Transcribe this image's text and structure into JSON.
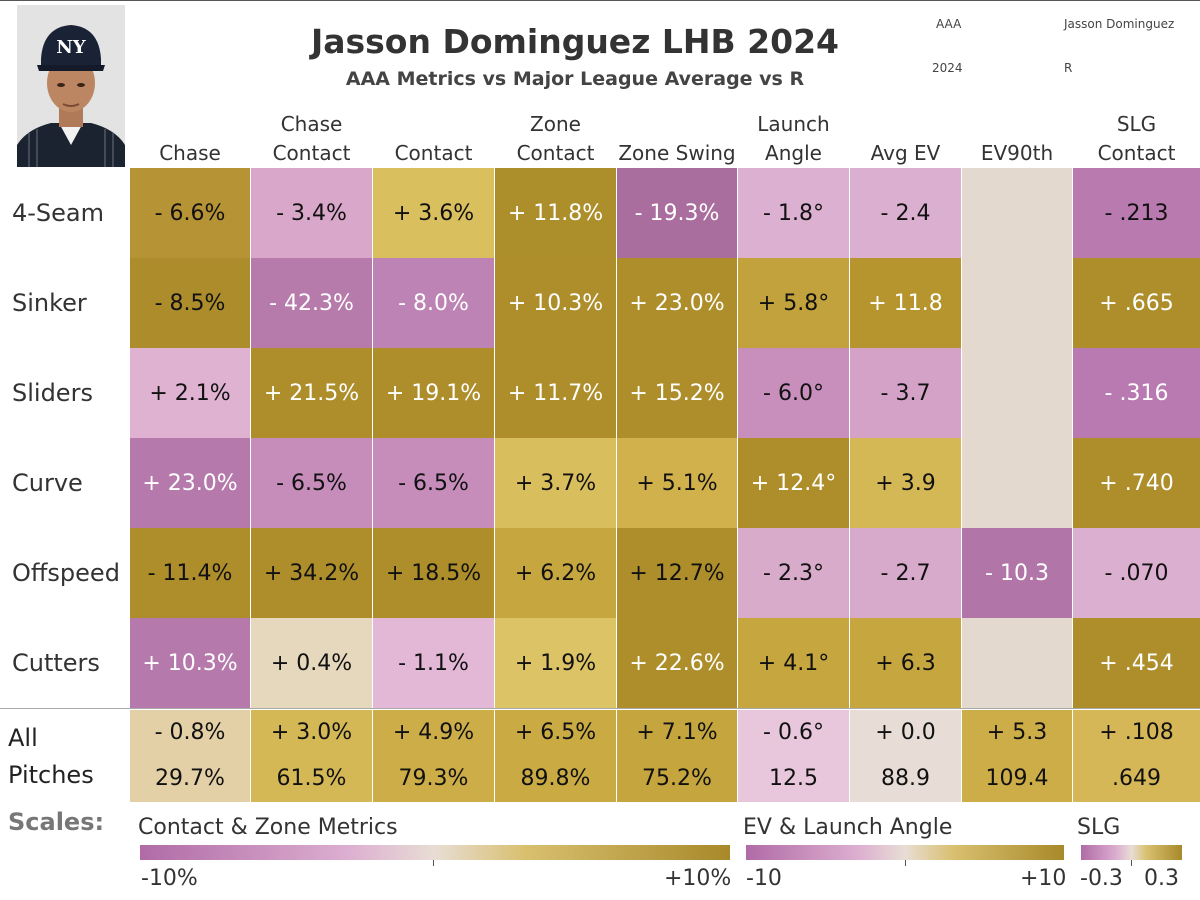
{
  "header": {
    "title": "Jasson Dominguez LHB 2024",
    "subtitle": "AAA Metrics vs Major League Average vs R",
    "meta": [
      "AAA",
      "Jasson Dominguez",
      "2024",
      "R"
    ]
  },
  "columns": [
    [
      "",
      "Chase"
    ],
    [
      "Chase",
      "Contact"
    ],
    [
      "",
      "Contact"
    ],
    [
      "Zone",
      "Contact"
    ],
    [
      "",
      "Zone Swing"
    ],
    [
      "Launch",
      "Angle"
    ],
    [
      "",
      "Avg EV"
    ],
    [
      "",
      "EV90th"
    ],
    [
      "SLG",
      "Contact"
    ]
  ],
  "rows": [
    {
      "label": "4-Seam",
      "cells": [
        "- 6.6%",
        "- 3.4%",
        "+ 3.6%",
        "+ 11.8%",
        "- 19.3%",
        "- 1.8°",
        "- 2.4",
        "",
        "- .213"
      ]
    },
    {
      "label": "Sinker",
      "cells": [
        "- 8.5%",
        "- 42.3%",
        "- 8.0%",
        "+ 10.3%",
        "+ 23.0%",
        "+ 5.8°",
        "+ 11.8",
        "",
        "+ .665"
      ]
    },
    {
      "label": "Sliders",
      "cells": [
        "+ 2.1%",
        "+ 21.5%",
        "+ 19.1%",
        "+ 11.7%",
        "+ 15.2%",
        "- 6.0°",
        "- 3.7",
        "",
        "- .316"
      ]
    },
    {
      "label": "Curve",
      "cells": [
        "+ 23.0%",
        "- 6.5%",
        "- 6.5%",
        "+ 3.7%",
        "+ 5.1%",
        "+ 12.4°",
        "+ 3.9",
        "",
        "+ .740"
      ]
    },
    {
      "label": "Offspeed",
      "cells": [
        "- 11.4%",
        "+ 34.2%",
        "+ 18.5%",
        "+ 6.2%",
        "+ 12.7%",
        "- 2.3°",
        "- 2.7",
        "- 10.3",
        "- .070"
      ]
    },
    {
      "label": "Cutters",
      "cells": [
        "+ 10.3%",
        "+ 0.4%",
        "- 1.1%",
        "+ 1.9%",
        "+ 22.6%",
        "+ 4.1°",
        "+ 6.3",
        "",
        "+ .454"
      ]
    }
  ],
  "all_pitches": {
    "label_lines": [
      "All",
      "Pitches"
    ],
    "deltas": [
      "- 0.8%",
      "+ 3.0%",
      "+ 4.9%",
      "+ 6.5%",
      "+ 7.1%",
      "- 0.6°",
      "+ 0.0",
      "+ 5.3",
      "+ .108"
    ],
    "values": [
      "29.7%",
      "61.5%",
      "79.3%",
      "89.8%",
      "75.2%",
      "12.5",
      "88.9",
      "109.4",
      ".649"
    ]
  },
  "scales": {
    "label": "Scales:",
    "legends": [
      {
        "title": "Contact & Zone Metrics",
        "min_label": "-10%",
        "max_label": "+10%"
      },
      {
        "title": "EV & Launch Angle",
        "min_label": "-10",
        "max_label": "+10"
      },
      {
        "title": "SLG",
        "min_label": "-0.3",
        "max_label": "0.3"
      }
    ]
  },
  "colors": {
    "cells": [
      [
        "#b69335",
        "#d9a7c9",
        "#d9bf5e",
        "#ac8e2a",
        "#a96d9e",
        "#dcb0d0",
        "#dbafcf",
        "#e3d9cf",
        "#b97ab0"
      ],
      [
        "#ad8d2b",
        "#b67aab",
        "#bc83b4",
        "#ad8e2b",
        "#ad8e2b",
        "#c1a23d",
        "#b6952e",
        "#e3d9cf",
        "#ad8e2b"
      ],
      [
        "#dfb2d2",
        "#ad8e2b",
        "#ad8e2b",
        "#ad8e2b",
        "#ad8e2b",
        "#c88fbc",
        "#d4a2c7",
        "#e3d9cf",
        "#b87ab0"
      ],
      [
        "#b57aab",
        "#c68dbb",
        "#c68dbb",
        "#d9be5d",
        "#d1b14c",
        "#ad8e2b",
        "#d5b856",
        "#e3d9cf",
        "#ad8e2b"
      ],
      [
        "#ad8e2b",
        "#ad8e2b",
        "#ad8e2b",
        "#c6a63e",
        "#ad8e2b",
        "#d9abcb",
        "#d7a9ca",
        "#b275a8",
        "#dbafcf"
      ],
      [
        "#b57aab",
        "#e6d8bc",
        "#e2b8d6",
        "#dbc366",
        "#ad8e2b",
        "#c6a63e",
        "#c6a63e",
        "#e3d9cf",
        "#ad8e2b"
      ]
    ],
    "all": [
      "#e4d0a6",
      "#d5b856",
      "#cdad47",
      "#c9aa43",
      "#c5a53e",
      "#e8c7dc",
      "#e7ddd6",
      "#cdad47",
      "#d6b758"
    ],
    "light_text_cells": [
      [
        0,
        3
      ],
      [
        0,
        4
      ],
      [
        1,
        1
      ],
      [
        1,
        2
      ],
      [
        1,
        3
      ],
      [
        1,
        4
      ],
      [
        1,
        6
      ],
      [
        1,
        8
      ],
      [
        2,
        1
      ],
      [
        2,
        2
      ],
      [
        2,
        3
      ],
      [
        2,
        4
      ],
      [
        2,
        8
      ],
      [
        3,
        0
      ],
      [
        3,
        5
      ],
      [
        3,
        8
      ],
      [
        4,
        7
      ],
      [
        5,
        0
      ],
      [
        5,
        4
      ],
      [
        5,
        8
      ]
    ],
    "scale_pink": "#b06ba6",
    "scale_mid": "#e8ddd5",
    "scale_gold": "#a8892a"
  },
  "chart_data": {
    "type": "heatmap",
    "title": "Jasson Dominguez LHB 2024",
    "subtitle": "AAA Metrics vs Major League Average vs R",
    "columns": [
      "Chase",
      "Chase Contact",
      "Contact",
      "Zone Contact",
      "Zone Swing",
      "Launch Angle",
      "Avg EV",
      "EV90th",
      "SLG Contact"
    ],
    "rows": [
      "4-Seam",
      "Sinker",
      "Sliders",
      "Curve",
      "Offspeed",
      "Cutters",
      "All Pitches"
    ],
    "values": [
      [
        -6.6,
        -3.4,
        3.6,
        11.8,
        -19.3,
        -1.8,
        -2.4,
        null,
        -0.213
      ],
      [
        -8.5,
        -42.3,
        -8.0,
        10.3,
        23.0,
        5.8,
        11.8,
        null,
        0.665
      ],
      [
        2.1,
        21.5,
        19.1,
        11.7,
        15.2,
        -6.0,
        -3.7,
        null,
        -0.316
      ],
      [
        23.0,
        -6.5,
        -6.5,
        3.7,
        5.1,
        12.4,
        3.9,
        null,
        0.74
      ],
      [
        -11.4,
        34.2,
        18.5,
        6.2,
        12.7,
        -2.3,
        -2.7,
        -10.3,
        -0.07
      ],
      [
        10.3,
        0.4,
        -1.1,
        1.9,
        22.6,
        4.1,
        6.3,
        null,
        0.454
      ],
      [
        -0.8,
        3.0,
        4.9,
        6.5,
        7.1,
        -0.6,
        0.0,
        5.3,
        0.108
      ]
    ],
    "all_pitches_values": [
      29.7,
      61.5,
      79.3,
      89.8,
      75.2,
      12.5,
      88.9,
      109.4,
      0.649
    ]
  }
}
